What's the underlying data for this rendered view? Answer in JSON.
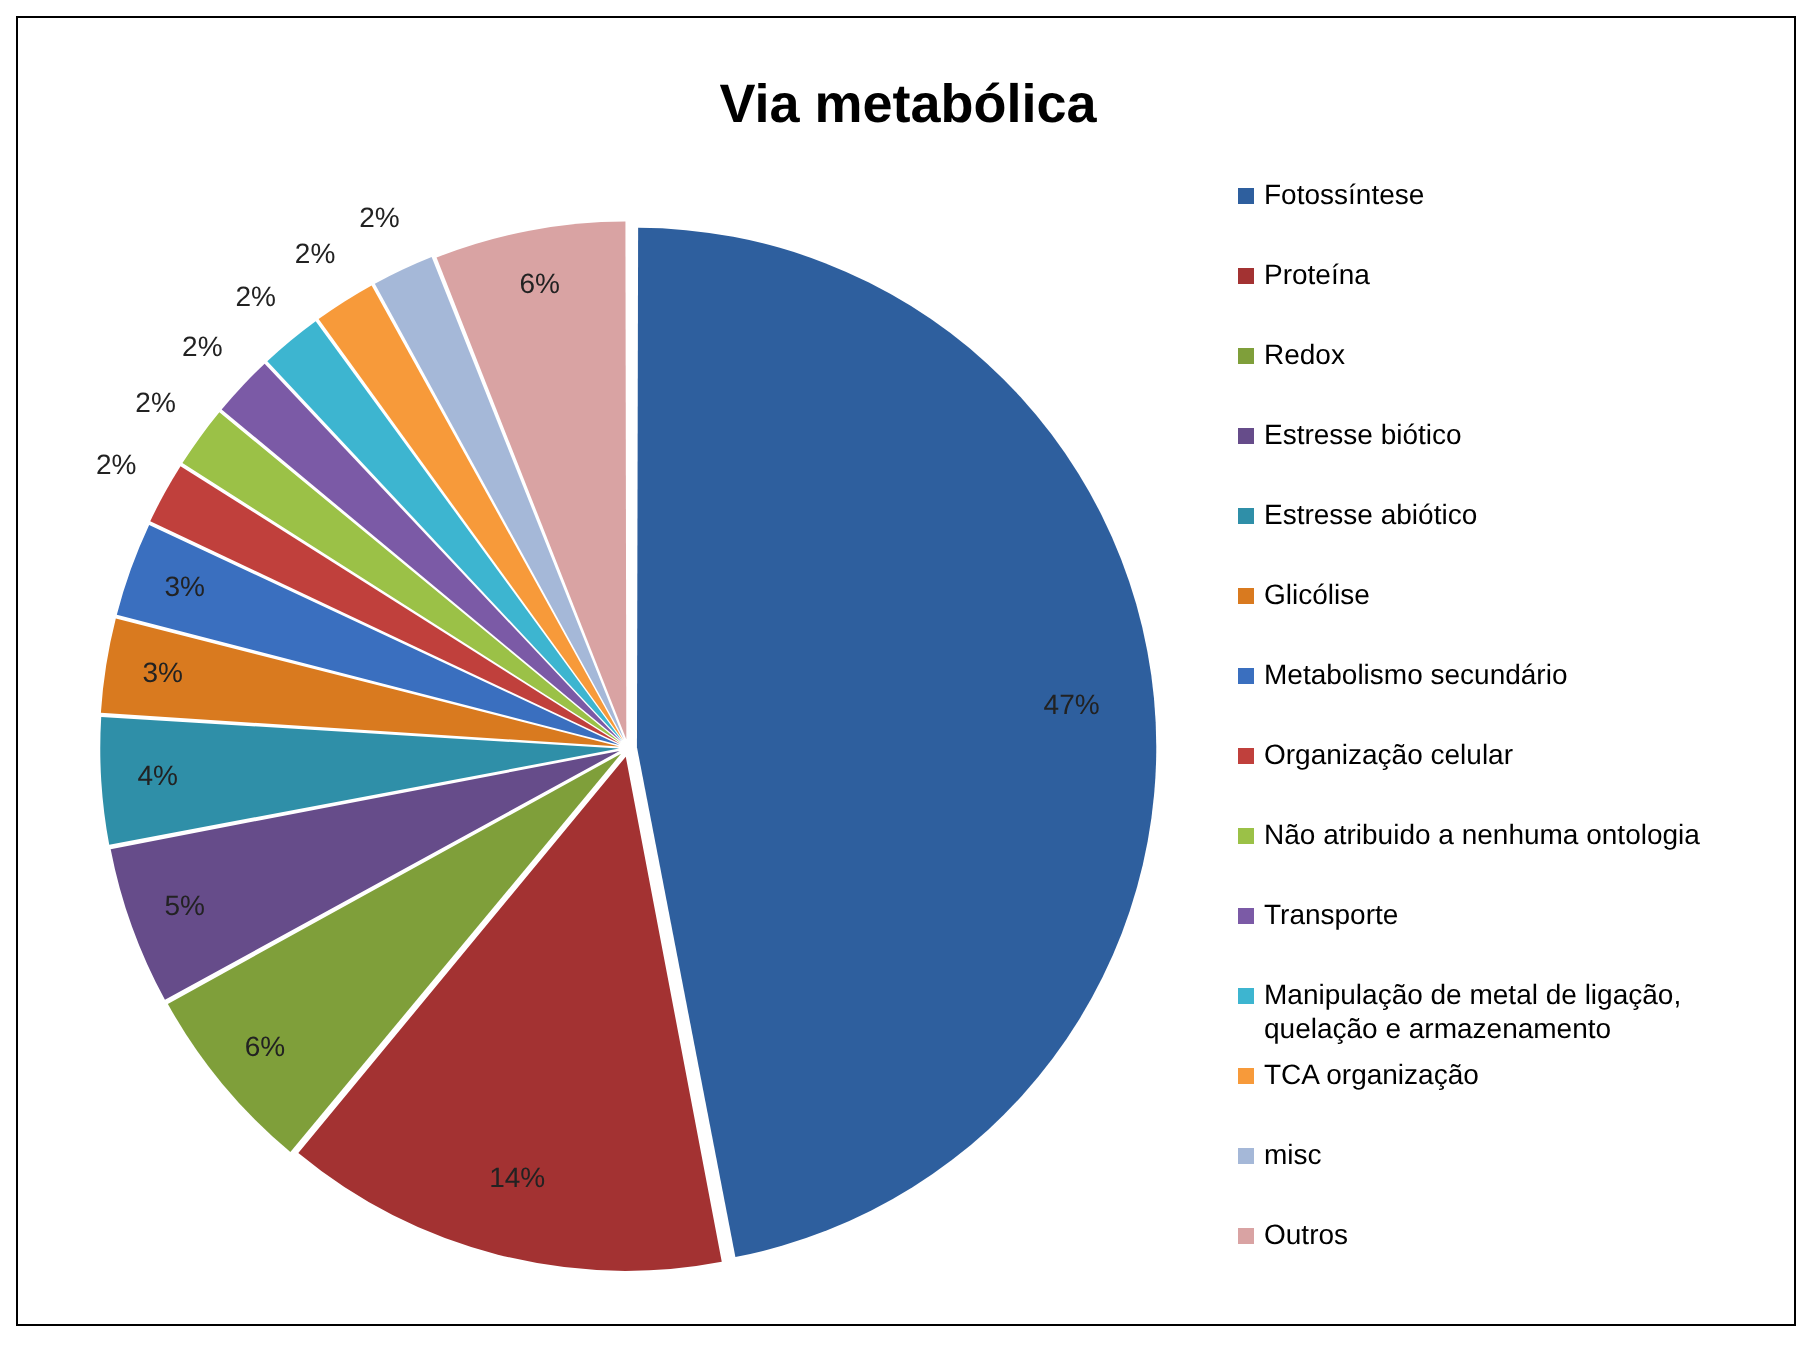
{
  "chart_data": {
    "type": "pie",
    "title": "Via metabólica",
    "categories": [
      "Fotossíntese",
      "Proteína",
      "Redox",
      "Estresse biótico",
      "Estresse abiótico",
      "Glicólise",
      "Metabolismo secundário",
      "Organização celular",
      "Não atribuido a nenhuma ontologia",
      "Transporte",
      "Manipulação de metal de ligação, quelação e armazenamento",
      "TCA organização",
      "misc",
      "Outros"
    ],
    "values": [
      47,
      14,
      6,
      5,
      4,
      3,
      3,
      2,
      2,
      2,
      2,
      2,
      2,
      6
    ],
    "value_labels": [
      "47%",
      "14%",
      "6%",
      "5%",
      "4%",
      "3%",
      "3%",
      "2%",
      "2%",
      "2%",
      "2%",
      "2%",
      "2%",
      "6%"
    ],
    "colors": [
      "#2e5f9e",
      "#a33232",
      "#7f9f3a",
      "#664c8a",
      "#2f8fa8",
      "#d97a1f",
      "#3a6fbf",
      "#c0403c",
      "#9bc147",
      "#7b5aa6",
      "#3db5d0",
      "#f79a3a",
      "#a5b8d8",
      "#d9a3a3"
    ],
    "legend": "right"
  }
}
